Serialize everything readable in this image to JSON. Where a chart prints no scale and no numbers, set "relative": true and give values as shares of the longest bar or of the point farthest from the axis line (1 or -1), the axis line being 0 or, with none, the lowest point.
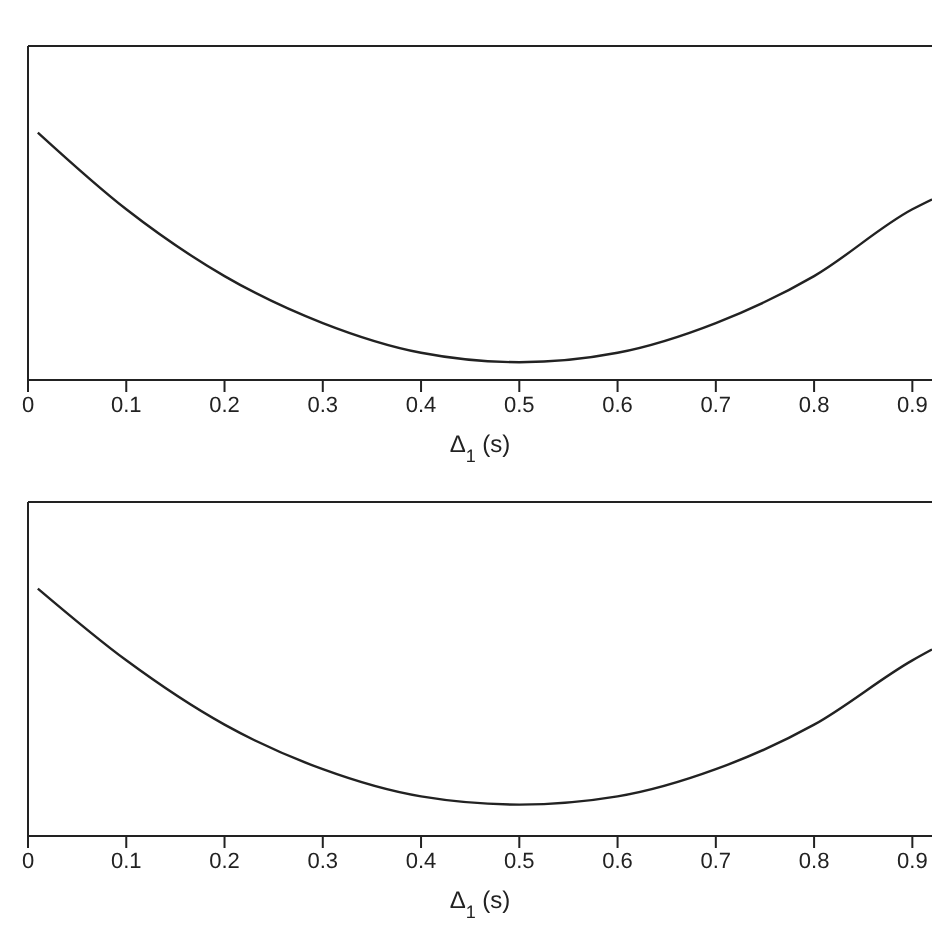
{
  "chart_data": [
    {
      "type": "line",
      "relative": true,
      "xlabel": "Δ$_{1}$ (s)",
      "xlim": [
        0,
        0.92
      ],
      "xticks": [
        0,
        0.1,
        0.2,
        0.3,
        0.4,
        0.5,
        0.6,
        0.7,
        0.8,
        0.9
      ],
      "grid": false,
      "legend": false,
      "marker": "none",
      "line_style": "solid",
      "tick_labels": "x",
      "series": [
        {
          "color": "#222222",
          "x": [
            0.01,
            0.1,
            0.2,
            0.3,
            0.4,
            0.5,
            0.6,
            0.7,
            0.8,
            0.9,
            0.92
          ],
          "values": [
            1,
            0.69,
            0.42,
            0.23,
            0.11,
            0.072,
            0.11,
            0.23,
            0.42,
            0.69,
            0.73
          ]
        }
      ]
    },
    {
      "type": "line",
      "relative": true,
      "xlabel": "Δ$_{1}$ (s)",
      "xlim": [
        0,
        0.92
      ],
      "xticks": [
        0,
        0.1,
        0.2,
        0.3,
        0.4,
        0.5,
        0.6,
        0.7,
        0.8,
        0.9
      ],
      "grid": false,
      "legend": false,
      "marker": "none",
      "line_style": "solid",
      "tick_labels": "x",
      "series": [
        {
          "color": "#222222",
          "x": [
            0.01,
            0.1,
            0.2,
            0.3,
            0.4,
            0.5,
            0.6,
            0.7,
            0.8,
            0.9,
            0.92
          ],
          "values": [
            1,
            0.71,
            0.45,
            0.27,
            0.16,
            0.127,
            0.16,
            0.27,
            0.45,
            0.71,
            0.754
          ]
        }
      ]
    }
  ]
}
